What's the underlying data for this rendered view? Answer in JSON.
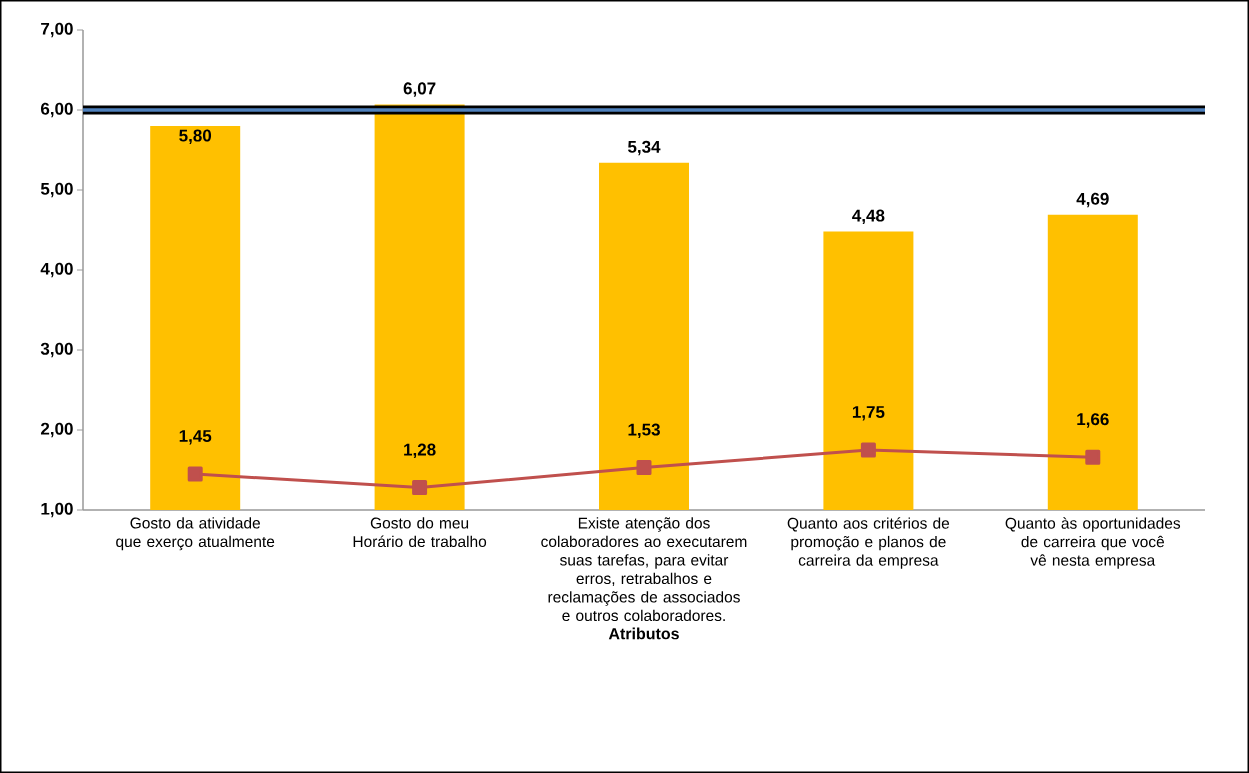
{
  "chart_data": {
    "type": "bar",
    "xlabel": "Atributos",
    "categories": [
      "Gosto da atividade que exerço atualmente",
      "Gosto do meu Horário de trabalho",
      "Existe atenção dos colaboradores ao executarem suas tarefas, para evitar erros, retrabalhos e reclamações de associados e outros colaboradores.",
      "Quanto aos critérios de promoção e planos de carreira da empresa",
      "Quanto às oportunidades de carreira que você vê nesta empresa"
    ],
    "series": [
      {
        "color": "#ffc000",
        "values": [
          5.8,
          6.07,
          5.34,
          4.48,
          4.69
        ],
        "value_labels": [
          "5,80",
          "6,07",
          "5,34",
          "4,48",
          "4,69"
        ]
      },
      {
        "type": "line",
        "color": "#c0504d",
        "marker": "square",
        "values": [
          1.45,
          1.28,
          1.53,
          1.75,
          1.66
        ],
        "value_labels": [
          "1,45",
          "1,28",
          "1,53",
          "1,75",
          "1,66"
        ]
      }
    ],
    "ref_lines": [
      {
        "axis": "y",
        "value": 6,
        "color": "#000000"
      },
      {
        "axis": "y",
        "value": 6,
        "color": "#4f81bd"
      }
    ],
    "ylim": [
      1,
      7
    ],
    "yticks": [
      {
        "value": 1,
        "label": "1,00"
      },
      {
        "value": 2,
        "label": "2,00"
      },
      {
        "value": 3,
        "label": "3,00"
      },
      {
        "value": 4,
        "label": "4,00"
      },
      {
        "value": 5,
        "label": "5,00"
      },
      {
        "value": 6,
        "label": "6,00"
      },
      {
        "value": 7,
        "label": "7,00"
      }
    ],
    "grid": false
  }
}
